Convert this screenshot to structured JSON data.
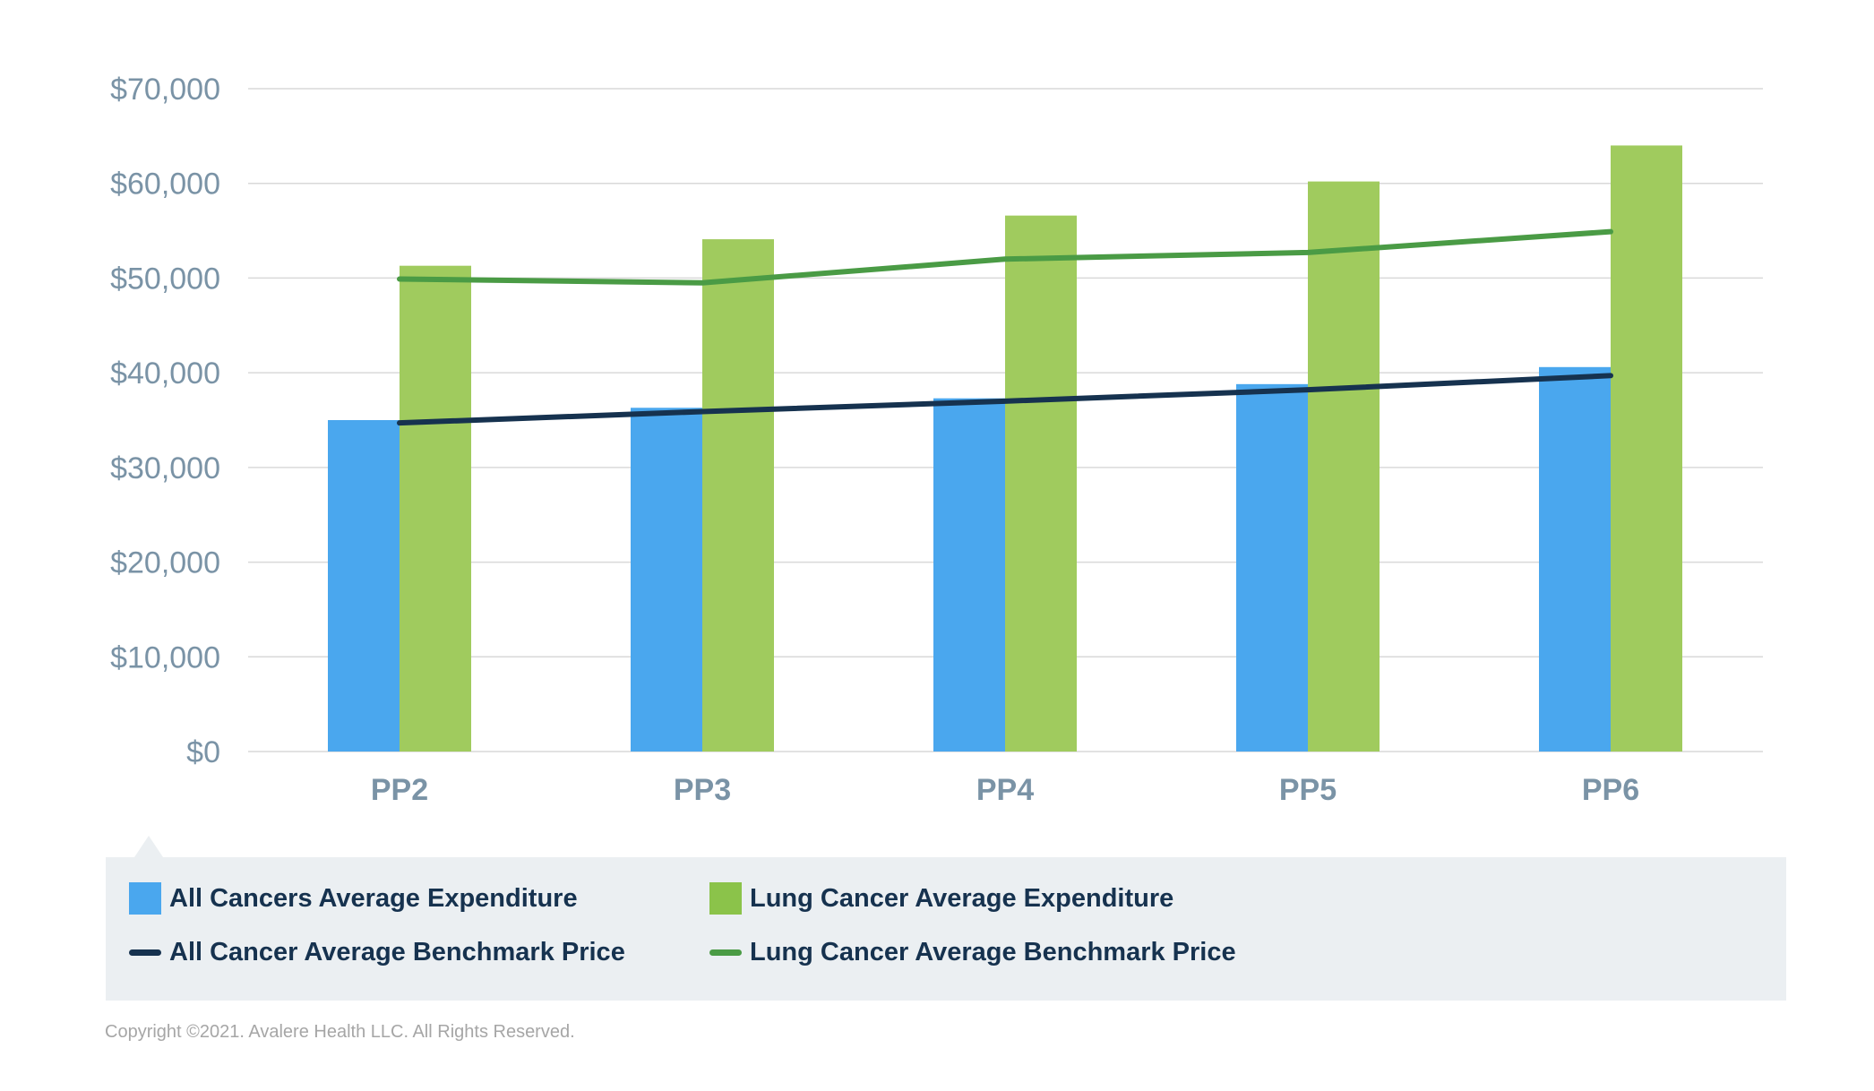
{
  "chart_data": {
    "type": "bar",
    "title": "",
    "xlabel": "",
    "ylabel": "",
    "ylim": [
      0,
      70000
    ],
    "yticks": [
      0,
      10000,
      20000,
      30000,
      40000,
      50000,
      60000,
      70000
    ],
    "ytick_labels": [
      "$0",
      "$10,000",
      "$20,000",
      "$30,000",
      "$40,000",
      "$50,000",
      "$60,000",
      "$70,000"
    ],
    "categories": [
      "PP2",
      "PP3",
      "PP4",
      "PP5",
      "PP6"
    ],
    "grid": true,
    "legend_position": "bottom",
    "series": [
      {
        "name": "All Cancers Average Expenditure",
        "kind": "bar",
        "color": "#4aa7ee",
        "values": [
          35000,
          36300,
          37300,
          38800,
          40600
        ]
      },
      {
        "name": "Lung Cancer Average Expenditure",
        "kind": "bar",
        "color": "#a0cb5e",
        "values": [
          51300,
          54100,
          56600,
          60200,
          64000
        ]
      },
      {
        "name": "All Cancer Average Benchmark Price",
        "kind": "line",
        "color": "#16324f",
        "values": [
          34700,
          35900,
          37000,
          38200,
          39700
        ]
      },
      {
        "name": "Lung Cancer Average Benchmark Price",
        "kind": "line",
        "color": "#4a9b45",
        "values": [
          49900,
          49500,
          52000,
          52700,
          54900
        ]
      }
    ]
  },
  "legend": {
    "items": [
      {
        "label": "All Cancers Average Expenditure",
        "swatch": "box",
        "color": "#4aa7ee"
      },
      {
        "label": "Lung Cancer Average Expenditure",
        "swatch": "box",
        "color": "#8bc34a"
      },
      {
        "label": "All Cancer Average Benchmark Price",
        "swatch": "line",
        "color": "#16324f"
      },
      {
        "label": "Lung Cancer Average Benchmark Price",
        "swatch": "line",
        "color": "#4a9b45"
      }
    ]
  },
  "footer": {
    "copyright": "Copyright ©2021. Avalere Health LLC. All Rights Reserved."
  }
}
